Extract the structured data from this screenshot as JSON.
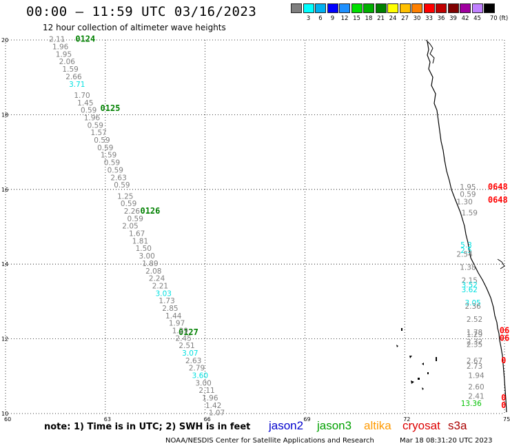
{
  "header": {
    "title": "00:00 – 11:59 UTC 03/16/2023",
    "subtitle": "12 hour collection of altimeter wave heights"
  },
  "legend": {
    "swatches": [
      {
        "color": "#7f7f7f",
        "label": ""
      },
      {
        "color": "#00ffff",
        "label": "3"
      },
      {
        "color": "#00b0f0",
        "label": "6"
      },
      {
        "color": "#0000ff",
        "label": "9"
      },
      {
        "color": "#1e90ff",
        "label": "12"
      },
      {
        "color": "#00e000",
        "label": "15"
      },
      {
        "color": "#00b000",
        "label": "18"
      },
      {
        "color": "#008000",
        "label": "21"
      },
      {
        "color": "#ffff00",
        "label": "24"
      },
      {
        "color": "#ffc000",
        "label": "27"
      },
      {
        "color": "#ff8000",
        "label": "30"
      },
      {
        "color": "#ff0000",
        "label": "33"
      },
      {
        "color": "#c00000",
        "label": "36"
      },
      {
        "color": "#800000",
        "label": "39"
      },
      {
        "color": "#a000a0",
        "label": "42"
      },
      {
        "color": "#c080ff",
        "label": "45"
      },
      {
        "color": "#000000",
        "label": "70 (ft)"
      }
    ]
  },
  "map": {
    "lon_range": [
      60,
      75
    ],
    "lat_range": [
      10,
      20
    ],
    "lon_ticks": [
      "60",
      "63",
      "66",
      "69",
      "72",
      "75"
    ],
    "lat_ticks": [
      "10",
      "12",
      "14",
      "16",
      "18",
      "20"
    ],
    "track_labels": [
      {
        "text": "0124",
        "lon": 62.1,
        "lat": 19.95,
        "color": "#008000"
      },
      {
        "text": "0125",
        "lon": 62.85,
        "lat": 18.1,
        "color": "#008000"
      },
      {
        "text": "0126",
        "lon": 64.05,
        "lat": 15.35,
        "color": "#008000"
      },
      {
        "text": "0127",
        "lon": 65.2,
        "lat": 12.1,
        "color": "#008000"
      },
      {
        "text": "0648",
        "lon": 74.5,
        "lat": 16.0,
        "color": "#ff0000"
      },
      {
        "text": "0648",
        "lon": 74.5,
        "lat": 15.65,
        "color": "#ff0000"
      },
      {
        "text": "06",
        "lon": 74.85,
        "lat": 12.15,
        "color": "#ff0000"
      },
      {
        "text": "06",
        "lon": 74.85,
        "lat": 11.95,
        "color": "#ff0000"
      },
      {
        "text": "0",
        "lon": 74.9,
        "lat": 11.35,
        "color": "#ff0000"
      },
      {
        "text": "0",
        "lon": 74.9,
        "lat": 10.35,
        "color": "#ff0000"
      },
      {
        "text": "0",
        "lon": 74.9,
        "lat": 10.15,
        "color": "#ff0000"
      }
    ],
    "swh_points": [
      {
        "v": "2.11",
        "lon": 61.55,
        "lat": 19.95,
        "c": "#7f7f7f"
      },
      {
        "v": "1.96",
        "lon": 61.65,
        "lat": 19.75,
        "c": "#7f7f7f"
      },
      {
        "v": "1.95",
        "lon": 61.75,
        "lat": 19.55,
        "c": "#7f7f7f"
      },
      {
        "v": "2.06",
        "lon": 61.85,
        "lat": 19.35,
        "c": "#7f7f7f"
      },
      {
        "v": "1.59",
        "lon": 61.95,
        "lat": 19.15,
        "c": "#7f7f7f"
      },
      {
        "v": "2.66",
        "lon": 62.05,
        "lat": 18.95,
        "c": "#7f7f7f"
      },
      {
        "v": "3.71",
        "lon": 62.15,
        "lat": 18.75,
        "c": "#00e0e0"
      },
      {
        "v": "1.70",
        "lon": 62.3,
        "lat": 18.45,
        "c": "#7f7f7f"
      },
      {
        "v": "1.45",
        "lon": 62.4,
        "lat": 18.25,
        "c": "#7f7f7f"
      },
      {
        "v": "0.59",
        "lon": 62.5,
        "lat": 18.05,
        "c": "#7f7f7f"
      },
      {
        "v": "1.96",
        "lon": 62.6,
        "lat": 17.85,
        "c": "#7f7f7f"
      },
      {
        "v": "0.59",
        "lon": 62.7,
        "lat": 17.65,
        "c": "#7f7f7f"
      },
      {
        "v": "1.57",
        "lon": 62.8,
        "lat": 17.45,
        "c": "#7f7f7f"
      },
      {
        "v": "0.59",
        "lon": 62.9,
        "lat": 17.25,
        "c": "#7f7f7f"
      },
      {
        "v": "0.59",
        "lon": 63.0,
        "lat": 17.05,
        "c": "#7f7f7f"
      },
      {
        "v": "1.59",
        "lon": 63.1,
        "lat": 16.85,
        "c": "#7f7f7f"
      },
      {
        "v": "0.59",
        "lon": 63.2,
        "lat": 16.65,
        "c": "#7f7f7f"
      },
      {
        "v": "0.59",
        "lon": 63.3,
        "lat": 16.45,
        "c": "#7f7f7f"
      },
      {
        "v": "2.63",
        "lon": 63.4,
        "lat": 16.25,
        "c": "#7f7f7f"
      },
      {
        "v": "0.59",
        "lon": 63.5,
        "lat": 16.05,
        "c": "#7f7f7f"
      },
      {
        "v": "1.25",
        "lon": 63.6,
        "lat": 15.75,
        "c": "#7f7f7f"
      },
      {
        "v": "0.59",
        "lon": 63.7,
        "lat": 15.55,
        "c": "#7f7f7f"
      },
      {
        "v": "2.26",
        "lon": 63.8,
        "lat": 15.35,
        "c": "#7f7f7f"
      },
      {
        "v": "0.59",
        "lon": 63.9,
        "lat": 15.15,
        "c": "#7f7f7f"
      },
      {
        "v": "2.05",
        "lon": 63.75,
        "lat": 14.95,
        "c": "#7f7f7f"
      },
      {
        "v": "1.67",
        "lon": 63.95,
        "lat": 14.75,
        "c": "#7f7f7f"
      },
      {
        "v": "1.81",
        "lon": 64.05,
        "lat": 14.55,
        "c": "#7f7f7f"
      },
      {
        "v": "1.50",
        "lon": 64.15,
        "lat": 14.35,
        "c": "#7f7f7f"
      },
      {
        "v": "3.00",
        "lon": 64.25,
        "lat": 14.15,
        "c": "#7f7f7f"
      },
      {
        "v": "1.89",
        "lon": 64.35,
        "lat": 13.95,
        "c": "#7f7f7f"
      },
      {
        "v": "2.08",
        "lon": 64.45,
        "lat": 13.75,
        "c": "#7f7f7f"
      },
      {
        "v": "2.24",
        "lon": 64.55,
        "lat": 13.55,
        "c": "#7f7f7f"
      },
      {
        "v": "2.21",
        "lon": 64.65,
        "lat": 13.35,
        "c": "#7f7f7f"
      },
      {
        "v": "3.03",
        "lon": 64.75,
        "lat": 13.15,
        "c": "#00e0e0"
      },
      {
        "v": "1.73",
        "lon": 64.85,
        "lat": 12.95,
        "c": "#7f7f7f"
      },
      {
        "v": "2.85",
        "lon": 64.95,
        "lat": 12.75,
        "c": "#7f7f7f"
      },
      {
        "v": "1.44",
        "lon": 65.05,
        "lat": 12.55,
        "c": "#7f7f7f"
      },
      {
        "v": "1.97",
        "lon": 65.15,
        "lat": 12.35,
        "c": "#7f7f7f"
      },
      {
        "v": "1.29",
        "lon": 65.25,
        "lat": 12.15,
        "c": "#7f7f7f"
      },
      {
        "v": "2.45",
        "lon": 65.35,
        "lat": 11.95,
        "c": "#7f7f7f"
      },
      {
        "v": "2.51",
        "lon": 65.45,
        "lat": 11.75,
        "c": "#7f7f7f"
      },
      {
        "v": "3.07",
        "lon": 65.55,
        "lat": 11.55,
        "c": "#00e0e0"
      },
      {
        "v": "2.63",
        "lon": 65.65,
        "lat": 11.35,
        "c": "#7f7f7f"
      },
      {
        "v": "2.79",
        "lon": 65.75,
        "lat": 11.15,
        "c": "#7f7f7f"
      },
      {
        "v": "3.60",
        "lon": 65.85,
        "lat": 10.95,
        "c": "#00e0e0"
      },
      {
        "v": "3.00",
        "lon": 65.95,
        "lat": 10.75,
        "c": "#7f7f7f"
      },
      {
        "v": "2.11",
        "lon": 66.05,
        "lat": 10.55,
        "c": "#7f7f7f"
      },
      {
        "v": "1.96",
        "lon": 66.15,
        "lat": 10.35,
        "c": "#7f7f7f"
      },
      {
        "v": "1.42",
        "lon": 66.25,
        "lat": 10.15,
        "c": "#7f7f7f"
      },
      {
        "v": "1.07",
        "lon": 66.35,
        "lat": 9.95,
        "c": "#7f7f7f"
      },
      {
        "v": "1.95",
        "lon": 73.9,
        "lat": 16.0,
        "c": "#7f7f7f"
      },
      {
        "v": "0.59",
        "lon": 73.9,
        "lat": 15.8,
        "c": "#7f7f7f"
      },
      {
        "v": "1.30",
        "lon": 73.8,
        "lat": 15.6,
        "c": "#7f7f7f"
      },
      {
        "v": "1.59",
        "lon": 73.95,
        "lat": 15.3,
        "c": "#7f7f7f"
      },
      {
        "v": "5.3",
        "lon": 73.85,
        "lat": 14.45,
        "c": "#00e0e0"
      },
      {
        "v": "2.5",
        "lon": 73.85,
        "lat": 14.3,
        "c": "#00e0e0"
      },
      {
        "v": "2.54",
        "lon": 73.8,
        "lat": 14.2,
        "c": "#7f7f7f"
      },
      {
        "v": "1.38",
        "lon": 73.9,
        "lat": 13.85,
        "c": "#7f7f7f"
      },
      {
        "v": "2.15",
        "lon": 73.95,
        "lat": 13.5,
        "c": "#7f7f7f"
      },
      {
        "v": "3.52",
        "lon": 73.95,
        "lat": 13.38,
        "c": "#00e0e0"
      },
      {
        "v": "3.62",
        "lon": 73.95,
        "lat": 13.25,
        "c": "#00e0e0"
      },
      {
        "v": "3.05",
        "lon": 74.05,
        "lat": 12.9,
        "c": "#00e0e0"
      },
      {
        "v": "2.36",
        "lon": 74.05,
        "lat": 12.8,
        "c": "#7f7f7f"
      },
      {
        "v": "2.52",
        "lon": 74.1,
        "lat": 12.45,
        "c": "#7f7f7f"
      },
      {
        "v": "1.78",
        "lon": 74.1,
        "lat": 12.1,
        "c": "#7f7f7f"
      },
      {
        "v": "1.29",
        "lon": 74.1,
        "lat": 12.05,
        "c": "#7f7f7f"
      },
      {
        "v": "2.32",
        "lon": 74.1,
        "lat": 11.85,
        "c": "#7f7f7f"
      },
      {
        "v": "2.35",
        "lon": 74.1,
        "lat": 11.78,
        "c": "#7f7f7f"
      },
      {
        "v": "2.67",
        "lon": 74.1,
        "lat": 11.35,
        "c": "#7f7f7f"
      },
      {
        "v": "2.73",
        "lon": 74.1,
        "lat": 11.2,
        "c": "#7f7f7f"
      },
      {
        "v": "1.94",
        "lon": 74.15,
        "lat": 10.95,
        "c": "#7f7f7f"
      },
      {
        "v": "2.60",
        "lon": 74.15,
        "lat": 10.65,
        "c": "#7f7f7f"
      },
      {
        "v": "2.41",
        "lon": 74.15,
        "lat": 10.4,
        "c": "#7f7f7f"
      },
      {
        "v": "13.36",
        "lon": 74.0,
        "lat": 10.2,
        "c": "#00c000"
      }
    ]
  },
  "footer": {
    "note": "note: 1) Time is in UTC; 2) SWH is in feet",
    "satellites": [
      {
        "name": "jason2",
        "color": "#0000cc"
      },
      {
        "name": "jason3",
        "color": "#00a000"
      },
      {
        "name": "altika",
        "color": "#ff9900"
      },
      {
        "name": "cryosat",
        "color": "#dd0000"
      },
      {
        "name": "s3a",
        "color": "#aa0000"
      }
    ],
    "credit": "NOAA/NESDIS Center for Satellite Applications and Research",
    "timestamp": "Mar 18 08:31:20 UTC 2023"
  }
}
